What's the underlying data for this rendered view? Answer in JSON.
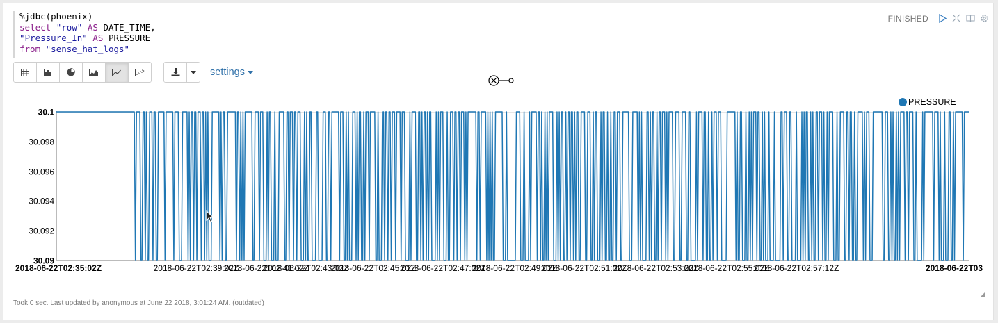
{
  "editor": {
    "lines": [
      [
        {
          "t": "%jdbc(phoenix)",
          "c": "plain"
        }
      ],
      [
        {
          "t": "select ",
          "c": "kw"
        },
        {
          "t": "\"row\"",
          "c": "str"
        },
        {
          "t": " AS ",
          "c": "kw"
        },
        {
          "t": "DATE_TIME,",
          "c": "plain"
        }
      ],
      [
        {
          "t": "\"Pressure_In\"",
          "c": "str"
        },
        {
          "t": " AS ",
          "c": "kw"
        },
        {
          "t": "PRESSURE",
          "c": "plain"
        }
      ],
      [
        {
          "t": "from ",
          "c": "kw"
        },
        {
          "t": "\"sense_hat_logs\"",
          "c": "str"
        }
      ]
    ]
  },
  "status": "FINISHED",
  "controls": {
    "icons": [
      "run-icon",
      "expand-icon",
      "book-icon",
      "gear-icon"
    ]
  },
  "toolbar": {
    "viz_buttons": [
      "table-icon",
      "bar-chart-icon",
      "pie-chart-icon",
      "area-chart-icon",
      "line-chart-icon",
      "scatter-chart-icon"
    ],
    "active": 4,
    "download_icon": "download-icon",
    "settings_label": "settings"
  },
  "footer": "Took 0 sec. Last updated by anonymous at June 22 2018, 3:01:24 AM. (outdated)",
  "chart_data": {
    "type": "line",
    "series": [
      {
        "name": "PRESSURE",
        "color": "#1f77b4",
        "pattern": "1111111111111111111111111111111111111111111111111111111111111111111111110111100110100111011001111110111111101111000111110101101101110110101000111111101011001111111101101010111111100111101110001011000100011111001101110110111000101001100001100001110011011111110111001010001110101100101110111110010001101101101110111101110000101111001101011010110000101011100010011101101101110101111111101101111101010100111111100010000000011110001000010111110110100101011110001010110010110110101100111100111001011000101100100100110111001111110001111101010000110101100101101110101111001111001111001100000101111011001001011101110000011111111010011000100101011101100101000100001000001101110011000010000101011001010011011101001011110001001111001101100100111110101110001111111110011100101001010111101101111001000001011111111011110100010001100101111111011111"
      }
    ],
    "high_value": 30.1,
    "low_value": 30.09,
    "ylim": [
      30.09,
      30.1
    ],
    "y_ticks": [
      "30.1",
      "30.098",
      "30.096",
      "30.094",
      "30.092",
      "30.09"
    ],
    "x_tick_labels": [
      "2018-06-22T02:35:02Z",
      "2018-06-22T02:39:02Z",
      "2018-06-22T02:41:02Z",
      "2018-06-22T02:43:02Z",
      "2018-06-22T02:45:02Z",
      "2018-06-22T02:47:02Z",
      "2018-06-22T02:49:02Z",
      "2018-06-22T02:51:02Z",
      "2018-06-22T02:53:02Z",
      "2018-06-22T02:55:02Z",
      "2018-06-22T02:57:12Z",
      "2018-06-22T03"
    ],
    "legend": "top-right",
    "grid": true
  }
}
